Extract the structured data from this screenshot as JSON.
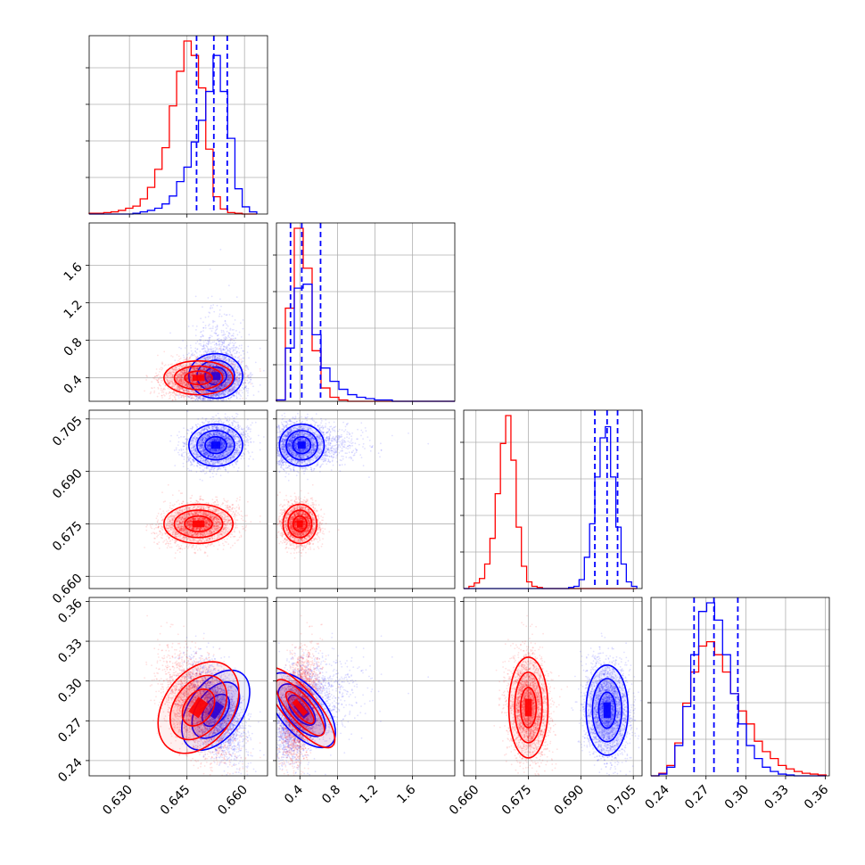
{
  "chart_data": {
    "type": "corner",
    "grid": true,
    "series": [
      {
        "color": "#0000ff",
        "point_count": 3000,
        "means": [
          0.6525,
          0.42,
          0.6975,
          0.278
        ],
        "sds": [
          0.0035,
          0.14,
          0.003,
          0.017
        ],
        "medians": [
          0.652,
          0.42,
          0.6975,
          0.276
        ],
        "quantiles_16_84": [
          [
            0.6475,
            0.6555
          ],
          [
            0.3,
            0.62
          ],
          [
            0.694,
            0.7005
          ],
          [
            0.261,
            0.294
          ]
        ],
        "skewed_dims": [
          1
        ]
      },
      {
        "color": "#ff0000",
        "point_count": 3000,
        "means": [
          0.648,
          0.4,
          0.675,
          0.28
        ],
        "sds": [
          0.0045,
          0.09,
          0.0028,
          0.019
        ]
      }
    ],
    "dimensions": [
      {
        "range": [
          0.6195,
          0.666
        ],
        "ticks": [
          0.63,
          0.645,
          0.66
        ],
        "tick_labels": [
          "0.630",
          "0.645",
          "0.660"
        ]
      },
      {
        "range": [
          0.15,
          2.05
        ],
        "ticks": [
          0.4,
          0.8,
          1.2,
          1.6
        ],
        "tick_labels": [
          "0.4",
          "0.8",
          "1.2",
          "1.6"
        ]
      },
      {
        "range": [
          0.6565,
          0.7075
        ],
        "ticks": [
          0.66,
          0.675,
          0.69,
          0.705
        ],
        "tick_labels": [
          "0.660",
          "0.675",
          "0.690",
          "0.705"
        ]
      },
      {
        "range": [
          0.2285,
          0.363
        ],
        "ticks": [
          0.24,
          0.27,
          0.3,
          0.33,
          0.36
        ],
        "tick_labels": [
          "0.24",
          "0.27",
          "0.30",
          "0.33",
          "0.36"
        ]
      }
    ],
    "blue_quantile_lines": [
      [
        0.6475,
        0.652,
        0.6555
      ],
      [
        0.3,
        0.42,
        0.62
      ],
      [
        0.694,
        0.6975,
        0.7005
      ],
      [
        0.261,
        0.276,
        0.294
      ]
    ],
    "histograms": [
      {
        "bin_edges": [
          0.6195,
          0.6214,
          0.6233,
          0.6252,
          0.6271,
          0.629,
          0.6309,
          0.6328,
          0.6347,
          0.6366,
          0.6385,
          0.6404,
          0.6423,
          0.6442,
          0.6461,
          0.648,
          0.6499,
          0.6518,
          0.6537,
          0.6556,
          0.6575,
          0.6594,
          0.6613,
          0.6632
        ],
        "blue": [
          0,
          0,
          0,
          0,
          0,
          0,
          1,
          3,
          5,
          8,
          14,
          25,
          45,
          65,
          100,
          130,
          170,
          220,
          170,
          105,
          35,
          10,
          3
        ],
        "red": [
          1,
          1,
          2,
          3,
          5,
          8,
          11,
          21,
          37,
          62,
          92,
          150,
          198,
          240,
          220,
          175,
          90,
          24,
          7,
          2,
          1,
          0,
          0
        ]
      },
      {
        "bin_edges": [
          0.15,
          0.245,
          0.34,
          0.435,
          0.53,
          0.625,
          0.72,
          0.815,
          0.91,
          1.005,
          1.1,
          1.195,
          1.29,
          1.385,
          1.48,
          1.575,
          1.67,
          1.765,
          1.86,
          1.955,
          2.05
        ],
        "blue": [
          1,
          40,
          85,
          88,
          50,
          25,
          15,
          9,
          5,
          3,
          2,
          1,
          1,
          0,
          0,
          0,
          0,
          0,
          0,
          0
        ],
        "red": [
          1,
          70,
          130,
          100,
          38,
          10,
          3,
          1,
          0,
          0,
          0,
          0,
          0,
          0,
          0,
          0,
          0,
          0,
          0,
          0
        ]
      },
      {
        "bin_edges": [
          0.6565,
          0.658,
          0.6595,
          0.661,
          0.6625,
          0.664,
          0.6655,
          0.667,
          0.6685,
          0.67,
          0.6715,
          0.673,
          0.6745,
          0.676,
          0.6775,
          0.679,
          0.6805,
          0.682,
          0.6835,
          0.685,
          0.6865,
          0.688,
          0.6895,
          0.691,
          0.6925,
          0.694,
          0.6955,
          0.697,
          0.6985,
          0.7,
          0.7015,
          0.703,
          0.7045,
          0.706
        ],
        "blue": [
          0,
          0,
          0,
          0,
          0,
          0,
          0,
          0,
          0,
          0,
          0,
          0,
          0,
          0,
          0,
          0,
          0,
          0,
          0,
          0,
          1,
          2,
          8,
          28,
          58,
          100,
          135,
          145,
          100,
          55,
          22,
          6,
          2
        ],
        "red": [
          0,
          2,
          5,
          9,
          22,
          45,
          85,
          130,
          155,
          115,
          55,
          20,
          6,
          2,
          1,
          0,
          0,
          0,
          0,
          0,
          0,
          0,
          0,
          0,
          0,
          0,
          0,
          0,
          0,
          0,
          0,
          0,
          0
        ]
      },
      {
        "bin_edges": [
          0.2285,
          0.2345,
          0.2405,
          0.2465,
          0.2525,
          0.2585,
          0.2645,
          0.2705,
          0.2765,
          0.2825,
          0.2885,
          0.2945,
          0.3005,
          0.3065,
          0.3125,
          0.3185,
          0.3245,
          0.3305,
          0.3365,
          0.3425,
          0.3485,
          0.3545,
          0.3605
        ],
        "blue": [
          0,
          2,
          10,
          35,
          80,
          140,
          190,
          200,
          180,
          140,
          95,
          60,
          35,
          20,
          10,
          5,
          2,
          1,
          0,
          0,
          0,
          0
        ],
        "red": [
          0,
          3,
          12,
          38,
          84,
          120,
          150,
          155,
          140,
          120,
          95,
          75,
          60,
          40,
          28,
          20,
          12,
          8,
          5,
          3,
          2,
          1
        ]
      }
    ]
  }
}
